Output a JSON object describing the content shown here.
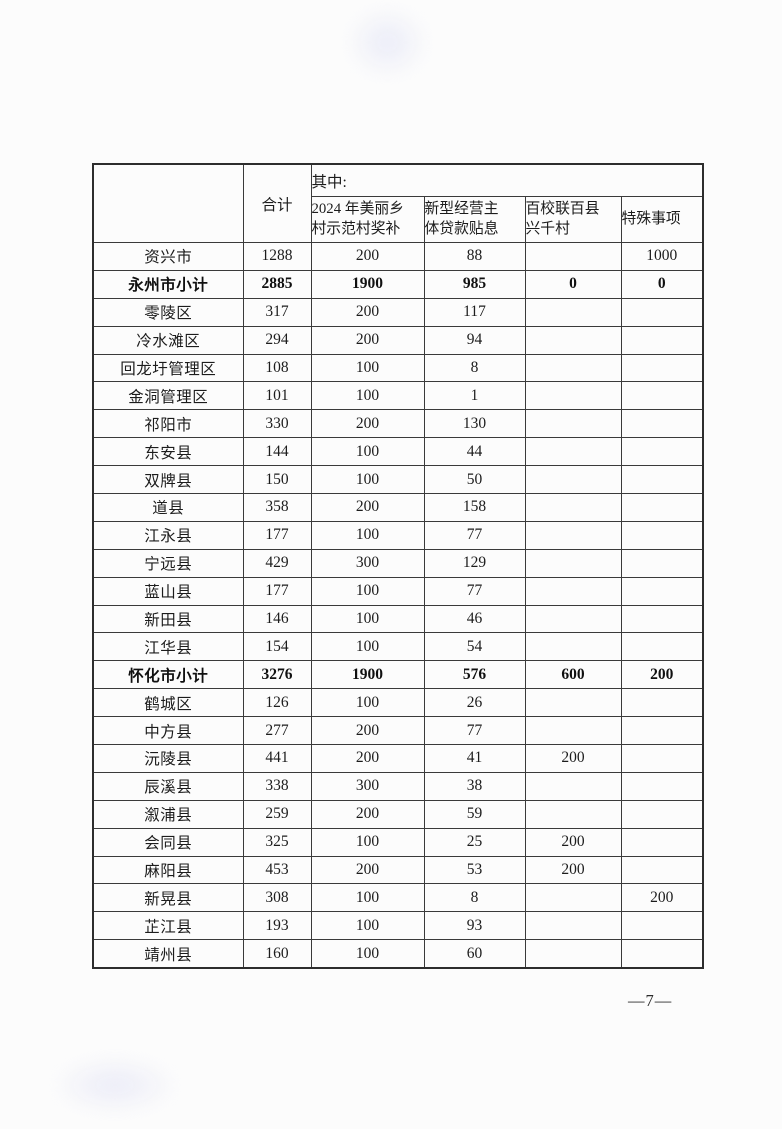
{
  "page": {
    "number": "—7—"
  },
  "table": {
    "header": {
      "region": "",
      "total": "合计",
      "group": "其中:",
      "sub_columns": [
        "2024 年美丽乡\n村示范村奖补",
        "新型经营主\n体贷款贴息",
        "百校联百县\n兴千村",
        "特殊事项"
      ]
    },
    "rows": [
      {
        "region": "资兴市",
        "values": [
          "1288",
          "200",
          "88",
          "",
          "1000"
        ],
        "bold": false
      },
      {
        "region": "永州市小计",
        "values": [
          "2885",
          "1900",
          "985",
          "0",
          "0"
        ],
        "bold": true
      },
      {
        "region": "零陵区",
        "values": [
          "317",
          "200",
          "117",
          "",
          ""
        ],
        "bold": false
      },
      {
        "region": "冷水滩区",
        "values": [
          "294",
          "200",
          "94",
          "",
          ""
        ],
        "bold": false
      },
      {
        "region": "回龙圩管理区",
        "values": [
          "108",
          "100",
          "8",
          "",
          ""
        ],
        "bold": false
      },
      {
        "region": "金洞管理区",
        "values": [
          "101",
          "100",
          "1",
          "",
          ""
        ],
        "bold": false
      },
      {
        "region": "祁阳市",
        "values": [
          "330",
          "200",
          "130",
          "",
          ""
        ],
        "bold": false
      },
      {
        "region": "东安县",
        "values": [
          "144",
          "100",
          "44",
          "",
          ""
        ],
        "bold": false
      },
      {
        "region": "双牌县",
        "values": [
          "150",
          "100",
          "50",
          "",
          ""
        ],
        "bold": false
      },
      {
        "region": "道县",
        "values": [
          "358",
          "200",
          "158",
          "",
          ""
        ],
        "bold": false
      },
      {
        "region": "江永县",
        "values": [
          "177",
          "100",
          "77",
          "",
          ""
        ],
        "bold": false
      },
      {
        "region": "宁远县",
        "values": [
          "429",
          "300",
          "129",
          "",
          ""
        ],
        "bold": false
      },
      {
        "region": "蓝山县",
        "values": [
          "177",
          "100",
          "77",
          "",
          ""
        ],
        "bold": false
      },
      {
        "region": "新田县",
        "values": [
          "146",
          "100",
          "46",
          "",
          ""
        ],
        "bold": false
      },
      {
        "region": "江华县",
        "values": [
          "154",
          "100",
          "54",
          "",
          ""
        ],
        "bold": false
      },
      {
        "region": "怀化市小计",
        "values": [
          "3276",
          "1900",
          "576",
          "600",
          "200"
        ],
        "bold": true
      },
      {
        "region": "鹤城区",
        "values": [
          "126",
          "100",
          "26",
          "",
          ""
        ],
        "bold": false
      },
      {
        "region": "中方县",
        "values": [
          "277",
          "200",
          "77",
          "",
          ""
        ],
        "bold": false
      },
      {
        "region": "沅陵县",
        "values": [
          "441",
          "200",
          "41",
          "200",
          ""
        ],
        "bold": false
      },
      {
        "region": "辰溪县",
        "values": [
          "338",
          "300",
          "38",
          "",
          ""
        ],
        "bold": false
      },
      {
        "region": "溆浦县",
        "values": [
          "259",
          "200",
          "59",
          "",
          ""
        ],
        "bold": false
      },
      {
        "region": "会同县",
        "values": [
          "325",
          "100",
          "25",
          "200",
          ""
        ],
        "bold": false
      },
      {
        "region": "麻阳县",
        "values": [
          "453",
          "200",
          "53",
          "200",
          ""
        ],
        "bold": false
      },
      {
        "region": "新晃县",
        "values": [
          "308",
          "100",
          "8",
          "",
          "200"
        ],
        "bold": false
      },
      {
        "region": "芷江县",
        "values": [
          "193",
          "100",
          "93",
          "",
          ""
        ],
        "bold": false
      },
      {
        "region": "靖州县",
        "values": [
          "160",
          "100",
          "60",
          "",
          ""
        ],
        "bold": false
      }
    ]
  }
}
